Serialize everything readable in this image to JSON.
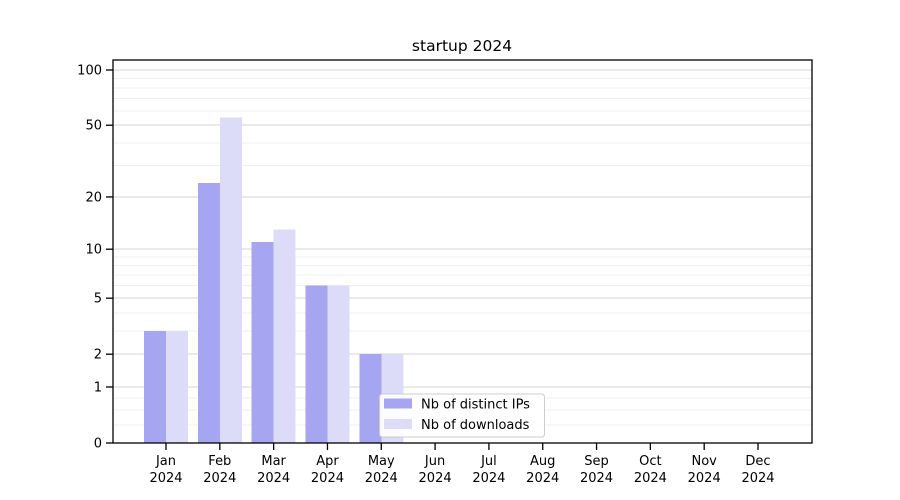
{
  "chart_data": {
    "type": "bar",
    "title": "startup 2024",
    "categories": [
      "Jan",
      "Feb",
      "Mar",
      "Apr",
      "May",
      "Jun",
      "Jul",
      "Aug",
      "Sep",
      "Oct",
      "Nov",
      "Dec"
    ],
    "category_sublabel": "2024",
    "series": [
      {
        "name": "Nb of distinct IPs",
        "color": "#a5a5f2",
        "values": [
          3,
          24,
          11,
          6,
          2,
          0,
          0,
          0,
          0,
          0,
          0,
          0
        ]
      },
      {
        "name": "Nb of downloads",
        "color": "#dcdcf9",
        "values": [
          3,
          55,
          13,
          6,
          2,
          0,
          0,
          0,
          0,
          0,
          0,
          0
        ]
      }
    ],
    "xlabel": "",
    "ylabel": "",
    "yscale": "symlog",
    "ylim": [
      0,
      113
    ],
    "yticks": [
      0,
      1,
      2,
      5,
      10,
      20,
      50,
      100
    ],
    "yticks_minor": [
      0.25,
      0.5,
      0.75,
      3,
      4,
      6,
      7,
      8,
      9,
      30,
      40,
      60,
      70,
      80,
      90
    ],
    "grid": "horizontal",
    "legend_position": "inside-lower-center",
    "colors": {
      "background": "#ffffff",
      "axis": "#000000",
      "grid_major": "#d6d6d6",
      "grid_minor": "#efefef",
      "legend_border": "#cccccc"
    }
  }
}
